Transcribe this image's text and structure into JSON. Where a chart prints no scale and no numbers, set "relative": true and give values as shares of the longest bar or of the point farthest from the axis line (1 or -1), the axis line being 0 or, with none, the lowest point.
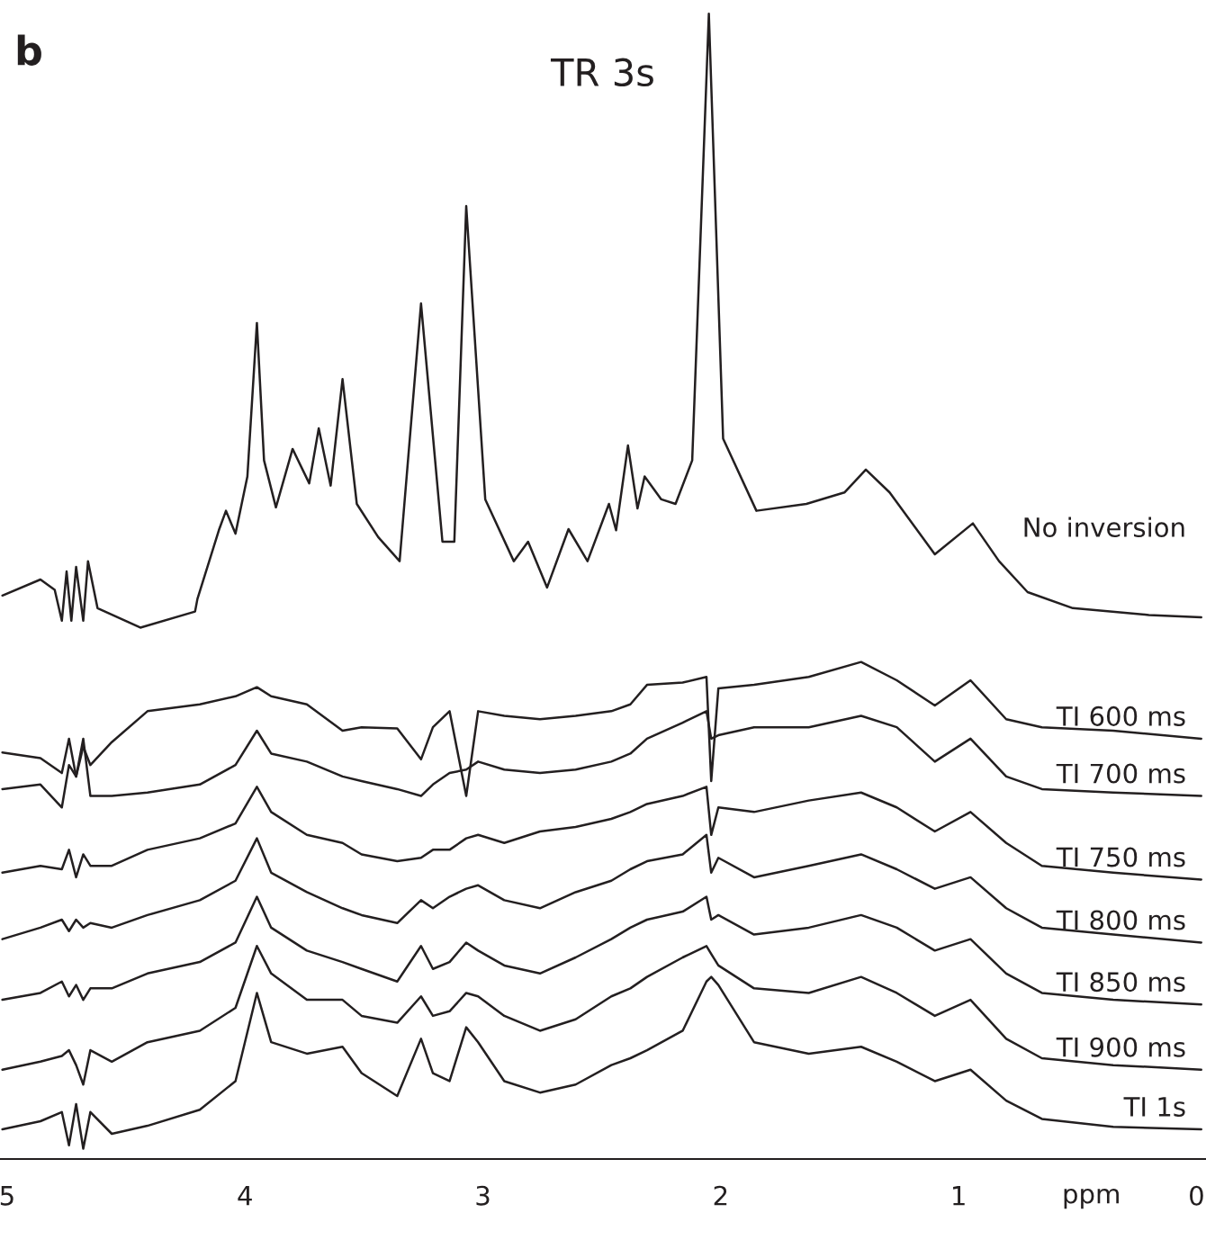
{
  "chart_data": {
    "type": "line",
    "title": "TR 3s",
    "xlabel": "ppm",
    "relative": true,
    "legend": false,
    "grid": false,
    "marker": "none",
    "line_style": "solid",
    "annotations": [
      "b"
    ],
    "xlim": [
      5.03,
      -0.04
    ],
    "xticks": [
      5,
      4,
      3,
      2,
      1,
      0
    ],
    "x": [
      5.02,
      4.86,
      4.77,
      4.74,
      4.71,
      4.68,
      4.65,
      4.56,
      4.41,
      4.19,
      4.04,
      3.95,
      3.89,
      3.74,
      3.59,
      3.51,
      3.36,
      3.26,
      3.21,
      3.14,
      3.07,
      3.02,
      2.91,
      2.76,
      2.61,
      2.46,
      2.38,
      2.31,
      2.16,
      2.06,
      2.04,
      2.01,
      1.86,
      1.63,
      1.41,
      1.26,
      1.1,
      0.95,
      0.8,
      0.65,
      0.35,
      -0.02
    ],
    "series": [
      {
        "name": "No inversion",
        "color": "#231f20",
        "x": [
          5.02,
          4.86,
          4.8,
          4.77,
          4.75,
          4.73,
          4.71,
          4.68,
          4.66,
          4.62,
          4.44,
          4.21,
          4.2,
          4.11,
          4.08,
          4.04,
          3.99,
          3.95,
          3.92,
          3.87,
          3.8,
          3.73,
          3.69,
          3.64,
          3.59,
          3.53,
          3.44,
          3.35,
          3.26,
          3.17,
          3.12,
          3.07,
          2.99,
          2.87,
          2.81,
          2.73,
          2.64,
          2.56,
          2.47,
          2.44,
          2.39,
          2.35,
          2.32,
          2.25,
          2.19,
          2.12,
          2.05,
          1.99,
          1.85,
          1.64,
          1.48,
          1.39,
          1.29,
          1.1,
          0.94,
          0.83,
          0.71,
          0.52,
          0.2,
          -0.02
        ],
        "values": [
          0.492,
          0.506,
          0.497,
          0.47,
          0.513,
          0.47,
          0.517,
          0.47,
          0.522,
          0.481,
          0.464,
          0.478,
          0.489,
          0.549,
          0.566,
          0.546,
          0.596,
          0.73,
          0.61,
          0.569,
          0.62,
          0.59,
          0.638,
          0.588,
          0.681,
          0.572,
          0.543,
          0.522,
          0.747,
          0.539,
          0.539,
          0.832,
          0.576,
          0.522,
          0.539,
          0.499,
          0.55,
          0.522,
          0.572,
          0.549,
          0.623,
          0.568,
          0.596,
          0.576,
          0.572,
          0.61,
          1.0,
          0.629,
          0.566,
          0.572,
          0.582,
          0.602,
          0.582,
          0.528,
          0.555,
          0.522,
          0.495,
          0.481,
          0.475,
          0.473
        ]
      },
      {
        "name": "TI 600 ms",
        "color": "#231f20",
        "values": [
          0.355,
          0.35,
          0.337,
          0.367,
          0.334,
          0.36,
          0.344,
          0.364,
          0.391,
          0.397,
          0.404,
          0.412,
          0.404,
          0.397,
          0.374,
          0.377,
          0.376,
          0.349,
          0.377,
          0.391,
          0.317,
          0.391,
          0.387,
          0.384,
          0.387,
          0.391,
          0.397,
          0.414,
          0.416,
          0.421,
          0.33,
          0.411,
          0.414,
          0.421,
          0.434,
          0.418,
          0.396,
          0.418,
          0.384,
          0.377,
          0.374,
          0.367
        ]
      },
      {
        "name": "TI 700 ms",
        "color": "#231f20",
        "values": [
          0.323,
          0.327,
          0.307,
          0.344,
          0.334,
          0.367,
          0.317,
          0.317,
          0.32,
          0.327,
          0.344,
          0.374,
          0.354,
          0.347,
          0.334,
          0.33,
          0.323,
          0.317,
          0.327,
          0.337,
          0.34,
          0.347,
          0.34,
          0.337,
          0.34,
          0.347,
          0.354,
          0.367,
          0.381,
          0.391,
          0.367,
          0.37,
          0.377,
          0.377,
          0.387,
          0.377,
          0.347,
          0.367,
          0.334,
          0.323,
          0.32,
          0.317
        ]
      },
      {
        "name": "TI 750 ms",
        "color": "#231f20",
        "values": [
          0.25,
          0.256,
          0.253,
          0.27,
          0.246,
          0.266,
          0.256,
          0.256,
          0.27,
          0.28,
          0.293,
          0.325,
          0.303,
          0.283,
          0.276,
          0.266,
          0.26,
          0.263,
          0.27,
          0.27,
          0.28,
          0.283,
          0.276,
          0.286,
          0.29,
          0.297,
          0.303,
          0.31,
          0.317,
          0.325,
          0.283,
          0.307,
          0.303,
          0.313,
          0.32,
          0.307,
          0.286,
          0.303,
          0.276,
          0.256,
          0.25,
          0.244
        ]
      },
      {
        "name": "TI 800 ms",
        "color": "#231f20",
        "values": [
          0.192,
          0.202,
          0.209,
          0.199,
          0.209,
          0.202,
          0.206,
          0.202,
          0.213,
          0.226,
          0.243,
          0.28,
          0.25,
          0.233,
          0.219,
          0.213,
          0.206,
          0.226,
          0.219,
          0.229,
          0.236,
          0.239,
          0.226,
          0.219,
          0.233,
          0.243,
          0.253,
          0.26,
          0.266,
          0.283,
          0.25,
          0.263,
          0.246,
          0.256,
          0.266,
          0.253,
          0.236,
          0.246,
          0.219,
          0.202,
          0.196,
          0.189
        ]
      },
      {
        "name": "TI 850 ms",
        "color": "#231f20",
        "values": [
          0.139,
          0.145,
          0.155,
          0.142,
          0.152,
          0.139,
          0.149,
          0.149,
          0.162,
          0.172,
          0.189,
          0.229,
          0.202,
          0.182,
          0.172,
          0.166,
          0.155,
          0.186,
          0.166,
          0.172,
          0.189,
          0.182,
          0.169,
          0.162,
          0.176,
          0.192,
          0.202,
          0.209,
          0.216,
          0.229,
          0.209,
          0.213,
          0.196,
          0.202,
          0.213,
          0.202,
          0.182,
          0.192,
          0.162,
          0.145,
          0.139,
          0.135
        ]
      },
      {
        "name": "TI 900 ms",
        "color": "#231f20",
        "values": [
          0.078,
          0.085,
          0.09,
          0.095,
          0.082,
          0.065,
          0.095,
          0.085,
          0.102,
          0.112,
          0.132,
          0.186,
          0.162,
          0.139,
          0.139,
          0.125,
          0.119,
          0.142,
          0.125,
          0.129,
          0.145,
          0.142,
          0.125,
          0.112,
          0.122,
          0.142,
          0.149,
          0.159,
          0.176,
          0.186,
          0.179,
          0.169,
          0.149,
          0.145,
          0.159,
          0.145,
          0.125,
          0.139,
          0.105,
          0.088,
          0.082,
          0.078
        ]
      },
      {
        "name": "TI 1s",
        "color": "#231f20",
        "values": [
          0.026,
          0.033,
          0.041,
          0.012,
          0.048,
          0.009,
          0.041,
          0.022,
          0.029,
          0.043,
          0.068,
          0.145,
          0.102,
          0.092,
          0.098,
          0.075,
          0.055,
          0.105,
          0.075,
          0.068,
          0.115,
          0.102,
          0.068,
          0.058,
          0.065,
          0.082,
          0.088,
          0.095,
          0.112,
          0.155,
          0.159,
          0.152,
          0.102,
          0.092,
          0.098,
          0.085,
          0.068,
          0.078,
          0.051,
          0.035,
          0.028,
          0.026
        ]
      }
    ]
  }
}
